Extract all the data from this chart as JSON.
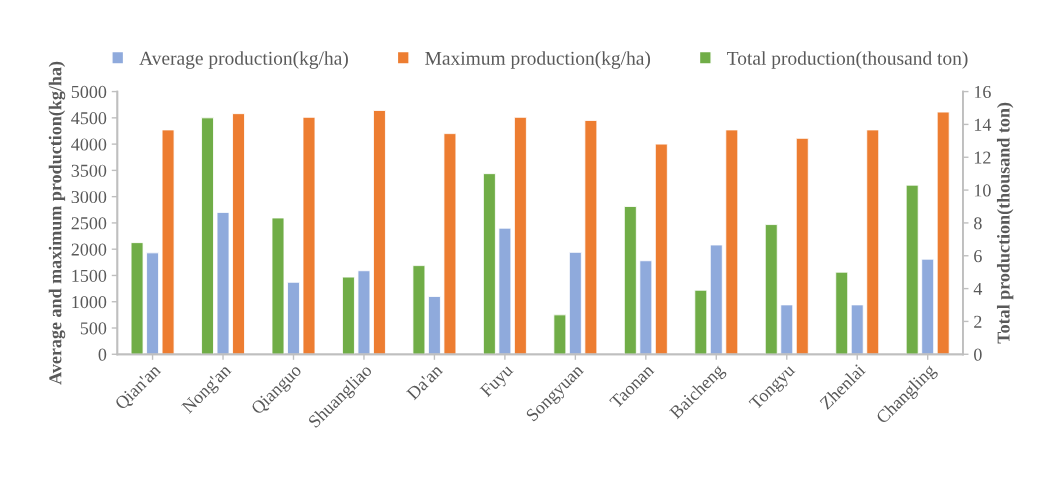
{
  "chart_data": {
    "type": "bar",
    "categories": [
      "Qian'an",
      "Nong'an",
      "Qianguo",
      "Shuangliao",
      "Da'an",
      "Fuyu",
      "Songyuan",
      "Taonan",
      "Baicheng",
      "Tongyu",
      "Zhenlai",
      "Changling"
    ],
    "series": [
      {
        "name": "Total production(thousand ton)",
        "color": "#70ad47",
        "axis": "y2",
        "values": [
          6.8,
          14.4,
          8.3,
          4.7,
          5.4,
          11.0,
          2.4,
          9.0,
          3.9,
          7.9,
          5.0,
          10.3
        ]
      },
      {
        "name": "Average production(kg/ha)",
        "color": "#8faadc",
        "values": [
          1930,
          2700,
          1370,
          1590,
          1100,
          2400,
          1940,
          1780,
          2080,
          940,
          940,
          1810
        ]
      },
      {
        "name": "Maximum production(kg/ha)",
        "color": "#ed7d31",
        "values": [
          4270,
          4580,
          4510,
          4640,
          4200,
          4510,
          4450,
          4000,
          4270,
          4110,
          4270,
          4610
        ]
      }
    ],
    "ylabel": "Average and maximum production(kg/ha)",
    "y2label": "Total production(thousand ton)",
    "ylim": [
      0,
      5000
    ],
    "yticks": [
      0,
      500,
      1000,
      1500,
      2000,
      2500,
      3000,
      3500,
      4000,
      4500,
      5000
    ],
    "y2lim": [
      0,
      16
    ],
    "y2ticks": [
      0,
      2,
      4,
      6,
      8,
      10,
      12,
      14,
      16
    ],
    "legend": "top",
    "grid": false
  }
}
